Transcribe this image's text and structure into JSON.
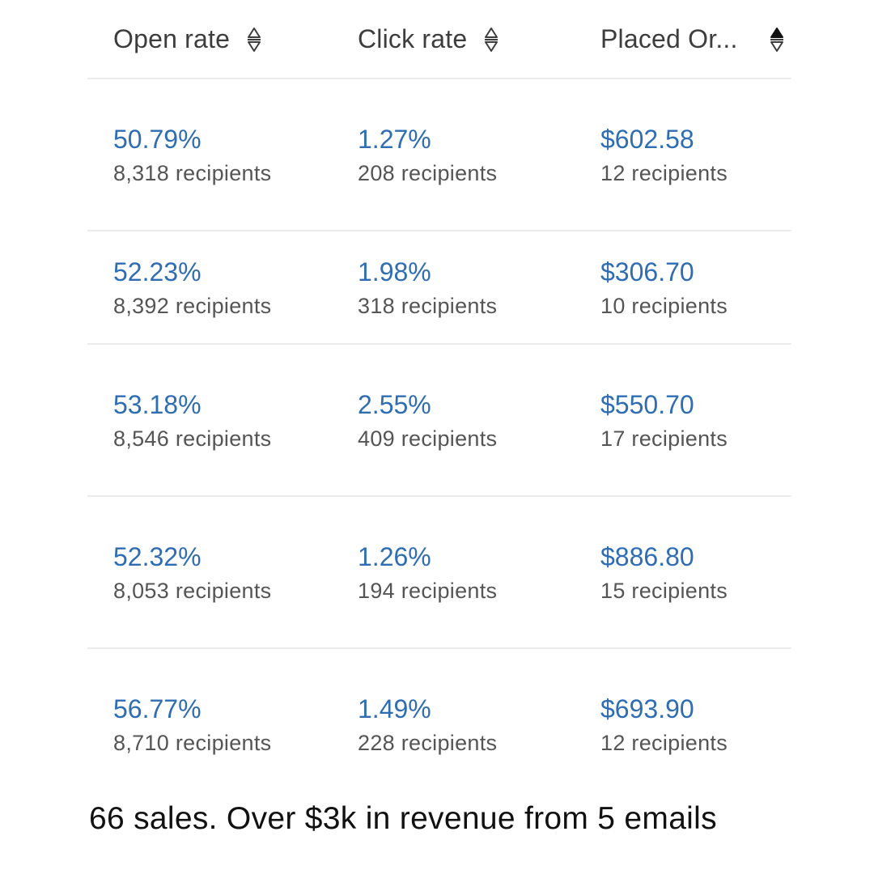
{
  "columns": [
    {
      "label": "Open rate",
      "sort_icon": "sort-unsorted-icon"
    },
    {
      "label": "Click rate",
      "sort_icon": "sort-unsorted-icon"
    },
    {
      "label": "Placed Or...",
      "sort_icon": "sort-descending-active-icon"
    }
  ],
  "rows": [
    {
      "open_rate": {
        "value": "50.79%",
        "recipients": "8,318 recipients"
      },
      "click_rate": {
        "value": "1.27%",
        "recipients": "208 recipients"
      },
      "placed_order": {
        "value": "$602.58",
        "recipients": "12 recipients"
      }
    },
    {
      "open_rate": {
        "value": "52.23%",
        "recipients": "8,392 recipients"
      },
      "click_rate": {
        "value": "1.98%",
        "recipients": "318 recipients"
      },
      "placed_order": {
        "value": "$306.70",
        "recipients": "10 recipients"
      }
    },
    {
      "open_rate": {
        "value": "53.18%",
        "recipients": "8,546 recipients"
      },
      "click_rate": {
        "value": "2.55%",
        "recipients": "409 recipients"
      },
      "placed_order": {
        "value": "$550.70",
        "recipients": "17 recipients"
      }
    },
    {
      "open_rate": {
        "value": "52.32%",
        "recipients": "8,053 recipients"
      },
      "click_rate": {
        "value": "1.26%",
        "recipients": "194 recipients"
      },
      "placed_order": {
        "value": "$886.80",
        "recipients": "15 recipients"
      }
    },
    {
      "open_rate": {
        "value": "56.77%",
        "recipients": "8,710 recipients"
      },
      "click_rate": {
        "value": "1.49%",
        "recipients": "228 recipients"
      },
      "placed_order": {
        "value": "$693.90",
        "recipients": "12 recipients"
      }
    }
  ],
  "caption": "66 sales. Over $3k in revenue from 5 emails",
  "colors": {
    "metric_blue": "#2f6db3",
    "header_text": "#3d3d3d",
    "sub_text": "#555555",
    "divider": "#ececec"
  }
}
